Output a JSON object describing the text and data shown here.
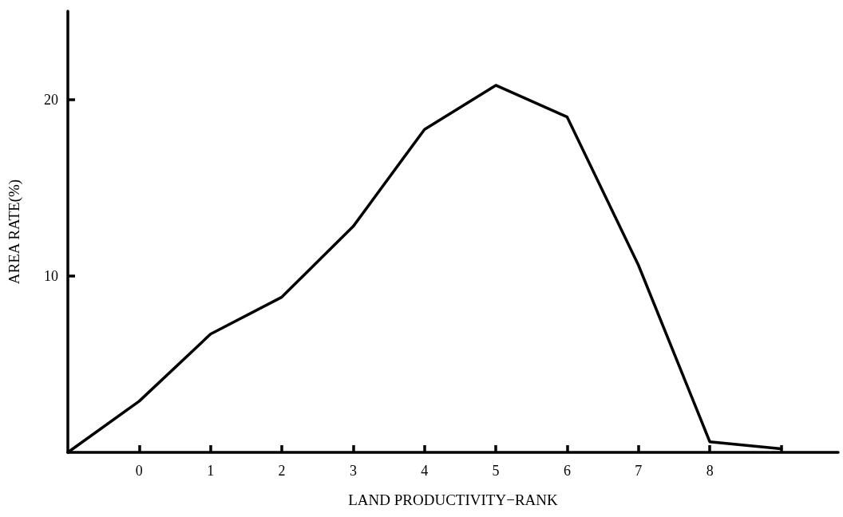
{
  "chart_data": {
    "type": "line",
    "xlabel": "LAND PRODUCTIVITY−RANK",
    "ylabel": "AREA RATE(%)",
    "x": [
      -1,
      0,
      1,
      2,
      3,
      4,
      5,
      6,
      7,
      8,
      9
    ],
    "series": [
      {
        "color": "#000000",
        "values": [
          0,
          2.9,
          6.7,
          8.8,
          12.8,
          18.3,
          20.8,
          19.0,
          10.6,
          0.6,
          0.2
        ]
      }
    ],
    "xlim": [
      -1,
      9.8
    ],
    "xticks": [
      0,
      1,
      2,
      3,
      4,
      5,
      6,
      7,
      8,
      {
        "value": 9,
        "label": null
      }
    ],
    "ylim": [
      0,
      25
    ],
    "yticks": [
      10,
      20
    ],
    "marker": "none",
    "line_style": "solid"
  }
}
